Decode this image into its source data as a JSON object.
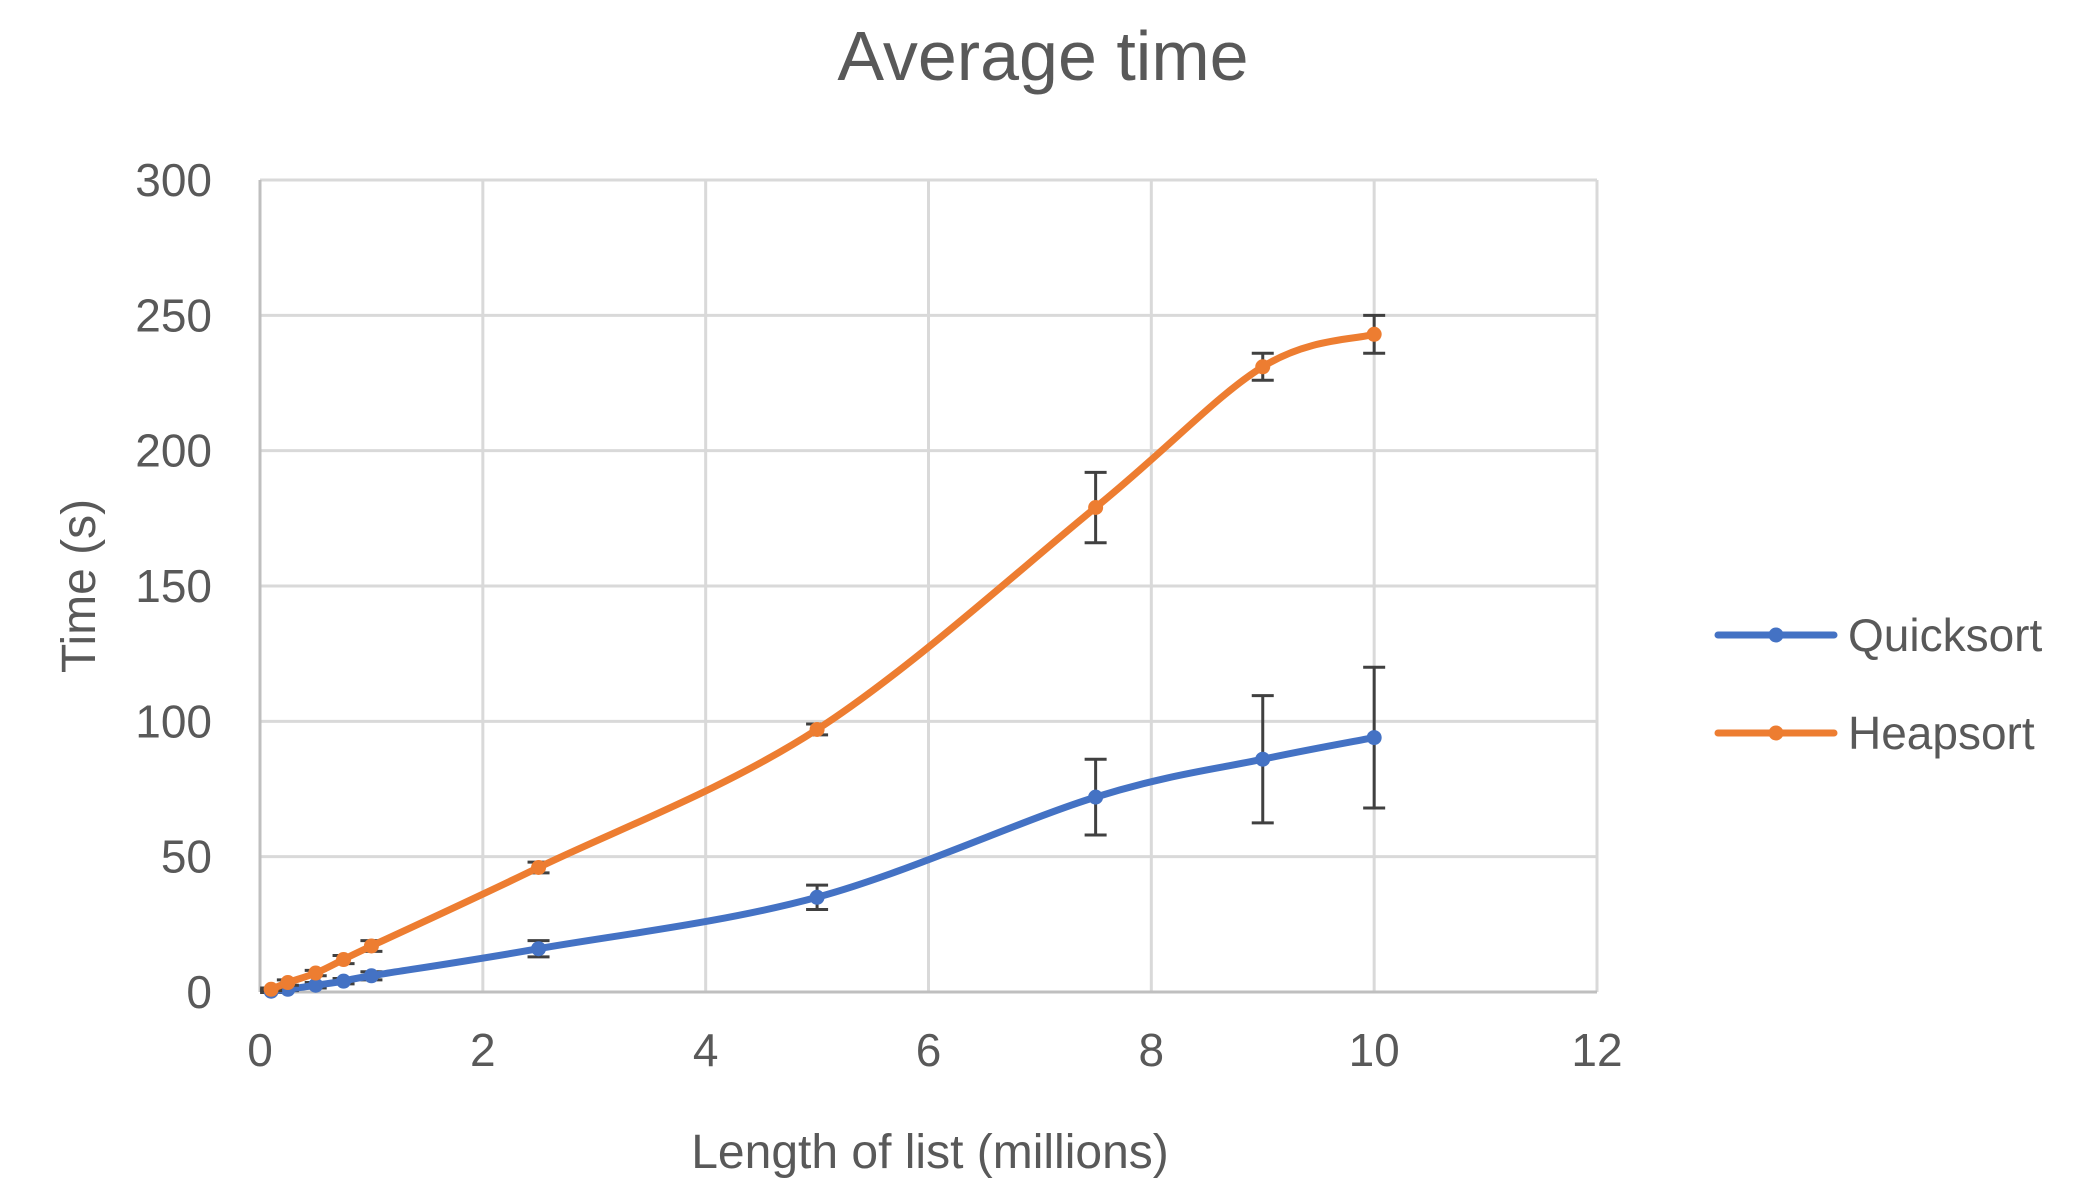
{
  "chart_data": {
    "type": "line",
    "title": "Average time",
    "xlabel": "Length of list (millions)",
    "ylabel": "Time (s)",
    "xlim": [
      0,
      12
    ],
    "ylim": [
      0,
      300
    ],
    "x_ticks": [
      "0",
      "2",
      "4",
      "6",
      "8",
      "10",
      "12"
    ],
    "y_ticks": [
      "0",
      "50",
      "100",
      "150",
      "200",
      "250",
      "300"
    ],
    "grid": true,
    "smooth": true,
    "legend_position": "right",
    "series": [
      {
        "name": "Quicksort",
        "color": "#4472c4",
        "x": [
          0.1,
          0.25,
          0.5,
          0.75,
          1,
          2.5,
          5,
          7.5,
          9,
          10
        ],
        "y": [
          0.3,
          1,
          2.5,
          4,
          6,
          16,
          35,
          72,
          86,
          94
        ],
        "error": [
          0.5,
          0.5,
          1,
          1,
          1.5,
          3,
          4.5,
          14,
          23.5,
          26
        ]
      },
      {
        "name": "Heapsort",
        "color": "#ed7d31",
        "x": [
          0.1,
          0.25,
          0.5,
          0.75,
          1,
          2.5,
          5,
          7.5,
          9,
          10
        ],
        "y": [
          1,
          3.5,
          7,
          12,
          17,
          46,
          97,
          179,
          231,
          243
        ],
        "error": [
          0.5,
          1,
          1,
          1.5,
          2,
          2,
          2,
          13,
          5,
          7
        ]
      }
    ]
  }
}
